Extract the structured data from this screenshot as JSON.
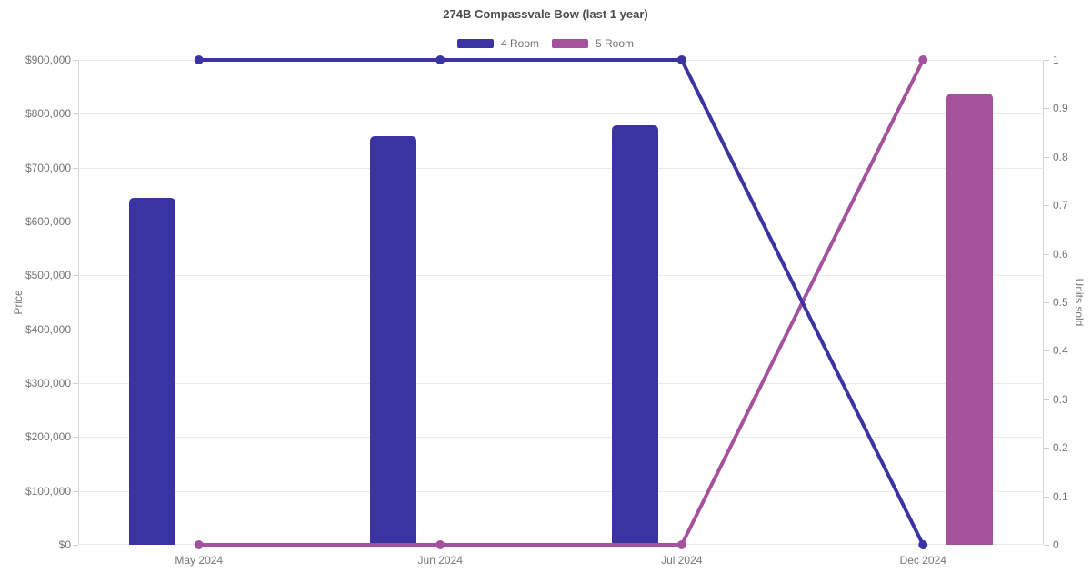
{
  "title": "274B Compassvale Bow (last 1 year)",
  "legend": {
    "items": [
      {
        "label": "4 Room",
        "color": "#3a33a2"
      },
      {
        "label": "5 Room",
        "color": "#a4529b"
      }
    ]
  },
  "colors": {
    "room4": "#3a33a2",
    "room5": "#a4529b",
    "grid": "#e9e9e9",
    "axis": "#cccccc",
    "tick_text": "#757575",
    "title_text": "#4a4a4a"
  },
  "chart_data": {
    "type": "bar",
    "subtype": "bar-line-combo",
    "title": "274B Compassvale Bow (last 1 year)",
    "categories": [
      "May 2024",
      "Jun 2024",
      "Jul 2024",
      "Dec 2024"
    ],
    "series": [
      {
        "name": "4 Room",
        "type": "bar",
        "yaxis": "left",
        "color": "#3a33a2",
        "values": [
          643000,
          758000,
          778000,
          null
        ]
      },
      {
        "name": "5 Room",
        "type": "bar",
        "yaxis": "left",
        "color": "#a4529b",
        "values": [
          null,
          null,
          null,
          837000
        ]
      },
      {
        "name": "4 Room",
        "type": "line",
        "yaxis": "right",
        "color": "#3a33a2",
        "values": [
          1,
          1,
          1,
          0
        ]
      },
      {
        "name": "5 Room",
        "type": "line",
        "yaxis": "right",
        "color": "#a4529b",
        "values": [
          0,
          0,
          0,
          1
        ]
      }
    ],
    "left_axis": {
      "title": "Price",
      "min": 0,
      "max": 900000,
      "tick_labels": [
        "$0",
        "$100,000",
        "$200,000",
        "$300,000",
        "$400,000",
        "$500,000",
        "$600,000",
        "$700,000",
        "$800,000",
        "$900,000"
      ]
    },
    "right_axis": {
      "title": "Units sold",
      "min": 0,
      "max": 1,
      "tick_labels": [
        "0",
        "0.1",
        "0.2",
        "0.3",
        "0.4",
        "0.5",
        "0.6",
        "0.7",
        "0.8",
        "0.9",
        "1"
      ]
    },
    "legend_position": "top",
    "grid": true
  }
}
